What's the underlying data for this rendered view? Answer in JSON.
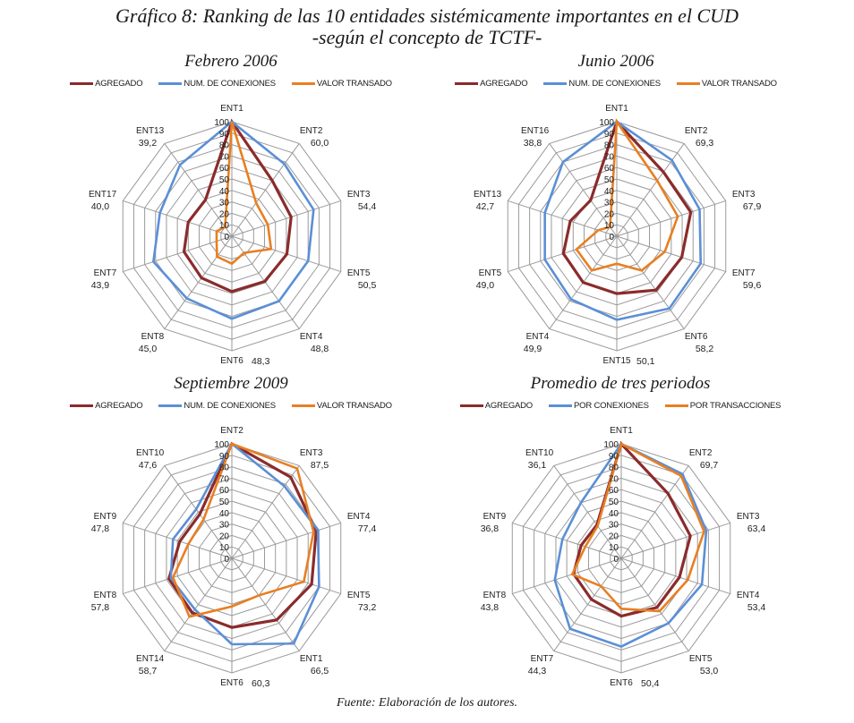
{
  "title_line1": "Gráfico 8: Ranking de las 10 entidades sistémicamente importantes en el CUD",
  "title_line2": "-según el concepto de TCTF-",
  "footer": "Fuente: Elaboración de los autores.",
  "colors": {
    "agregado": "#8b2b2b",
    "conexiones": "#5b8fd6",
    "valor": "#e87f22",
    "grid": "#9a9a9a"
  },
  "chart_data": [
    {
      "type": "radar",
      "title": "Febrero 2006",
      "legend": [
        "AGREGADO",
        "NUM. DE CONEXIONES",
        "VALOR TRANSADO"
      ],
      "legend_position": "top",
      "radial_ticks": [
        0,
        10,
        20,
        30,
        40,
        50,
        60,
        70,
        80,
        90,
        100
      ],
      "rlim": [
        0,
        100
      ],
      "categories": [
        "ENT1",
        "ENT2",
        "ENT3",
        "ENT5",
        "ENT4",
        "ENT6",
        "ENT8",
        "ENT7",
        "ENT17",
        "ENT13"
      ],
      "value_labels": [
        "",
        "60,0",
        "54,4",
        "50,5",
        "48,8",
        "48,3",
        "45,0",
        "43,9",
        "40,0",
        "39,2"
      ],
      "series": [
        {
          "name": "AGREGADO",
          "values": [
            100,
            60.0,
            54.4,
            50.5,
            48.8,
            48.3,
            45.0,
            43.9,
            40.0,
            39.2
          ]
        },
        {
          "name": "NUM. DE CONEXIONES",
          "values": [
            100,
            78,
            75,
            70,
            70,
            72,
            67,
            72,
            66,
            77
          ]
        },
        {
          "name": "VALOR TRANSADO",
          "values": [
            100,
            36,
            33,
            36,
            18,
            24,
            22,
            14,
            14,
            10
          ]
        }
      ]
    },
    {
      "type": "radar",
      "title": "Junio 2006",
      "legend": [
        "AGREGADO",
        "NUM. DE CONEXIONES",
        "VALOR TRANSADO"
      ],
      "legend_position": "top",
      "radial_ticks": [
        0,
        10,
        20,
        30,
        40,
        50,
        60,
        70,
        80,
        90,
        100
      ],
      "rlim": [
        0,
        100
      ],
      "categories": [
        "ENT1",
        "ENT2",
        "ENT3",
        "ENT7",
        "ENT6",
        "ENT15",
        "ENT4",
        "ENT5",
        "ENT13",
        "ENT16"
      ],
      "value_labels": [
        "",
        "69,3",
        "67,9",
        "59,6",
        "58,2",
        "50,1",
        "49,9",
        "49,0",
        "42,7",
        "38,8"
      ],
      "series": [
        {
          "name": "AGREGADO",
          "values": [
            100,
            69.3,
            67.9,
            59.6,
            58.2,
            50.1,
            49.9,
            49.0,
            42.7,
            38.8
          ]
        },
        {
          "name": "NUM. DE CONEXIONES",
          "values": [
            100,
            82,
            76,
            77,
            78,
            73,
            68,
            66,
            66,
            80
          ]
        },
        {
          "name": "VALOR TRANSADO",
          "values": [
            100,
            60,
            56,
            44,
            37,
            24,
            37,
            37,
            17,
            10
          ]
        }
      ]
    },
    {
      "type": "radar",
      "title": "Septiembre 2009",
      "legend": [
        "AGREGADO",
        "NUM. DE CONEXIONES",
        "VALOR TRANSADO"
      ],
      "legend_position": "top",
      "radial_ticks": [
        0,
        10,
        20,
        30,
        40,
        50,
        60,
        70,
        80,
        90,
        100
      ],
      "rlim": [
        0,
        100
      ],
      "categories": [
        "ENT2",
        "ENT3",
        "ENT4",
        "ENT5",
        "ENT1",
        "ENT6",
        "ENT14",
        "ENT8",
        "ENT9",
        "ENT10"
      ],
      "value_labels": [
        "",
        "87,5",
        "77,4",
        "73,2",
        "66,5",
        "60,3",
        "58,7",
        "57,8",
        "47,8",
        "47,6"
      ],
      "series": [
        {
          "name": "AGREGADO",
          "values": [
            100,
            87.5,
            77.4,
            73.2,
            66.5,
            60.3,
            58.7,
            57.8,
            47.8,
            47.6
          ]
        },
        {
          "name": "NUM. DE CONEXIONES",
          "values": [
            100,
            78,
            79,
            80,
            92,
            75,
            55,
            56,
            54,
            53
          ]
        },
        {
          "name": "VALOR TRANSADO",
          "values": [
            100,
            97,
            75,
            66,
            40,
            42,
            63,
            54,
            40,
            42
          ]
        }
      ]
    },
    {
      "type": "radar",
      "title": "Promedio de tres periodos",
      "legend": [
        "AGREGADO",
        "POR CONEXIONES",
        "POR TRANSACCIONES"
      ],
      "legend_position": "top",
      "radial_ticks": [
        0,
        10,
        20,
        30,
        40,
        50,
        60,
        70,
        80,
        90,
        100
      ],
      "rlim": [
        0,
        100
      ],
      "categories": [
        "ENT1",
        "ENT2",
        "ENT3",
        "ENT4",
        "ENT5",
        "ENT6",
        "ENT7",
        "ENT8",
        "ENT9",
        "ENT10"
      ],
      "value_labels": [
        "",
        "69,7",
        "63,4",
        "53,4",
        "53,0",
        "50,4",
        "44,3",
        "43,8",
        "36,8",
        "36,1"
      ],
      "series": [
        {
          "name": "AGREGADO",
          "values": [
            100,
            69.7,
            63.4,
            53.4,
            53.0,
            50.4,
            44.3,
            43.8,
            36.8,
            36.1
          ]
        },
        {
          "name": "POR CONEXIONES",
          "values": [
            100,
            91,
            78,
            74,
            70,
            77,
            76,
            61,
            54,
            60
          ]
        },
        {
          "name": "POR TRANSACCIONES",
          "values": [
            100,
            89,
            76,
            61,
            57,
            44,
            30,
            45,
            33,
            35
          ]
        }
      ]
    }
  ]
}
